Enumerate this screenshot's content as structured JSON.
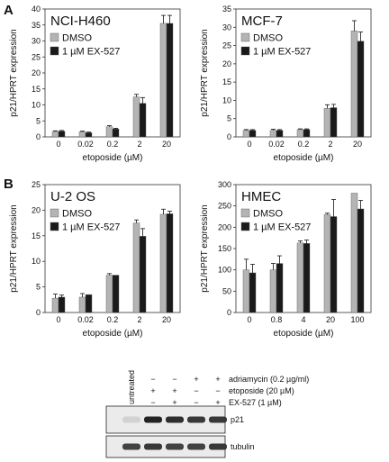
{
  "panel_labels": [
    "A",
    "B"
  ],
  "colors": {
    "dmso": "#b4b4b4",
    "ex527": "#1a1a1a",
    "axis": "#333333"
  },
  "chart_data": [
    {
      "type": "bar",
      "title": "NCI-H460",
      "xlabel": "etoposide (µM)",
      "ylabel": "p21/HPRT expression",
      "categories": [
        "0",
        "0.02",
        "0.2",
        "2",
        "20"
      ],
      "ylim": [
        0,
        40
      ],
      "yticks": [
        0,
        5,
        10,
        15,
        20,
        25,
        30,
        35,
        40
      ],
      "legend_position": "top-left",
      "grid": false,
      "series": [
        {
          "name": "DMSO",
          "color": "#b4b4b4",
          "values": [
            1.7,
            1.6,
            3.2,
            12.5,
            35.5
          ],
          "errors": [
            0.2,
            0.2,
            0.3,
            0.8,
            2.5
          ]
        },
        {
          "name": "1 µM EX-527",
          "color": "#1a1a1a",
          "values": [
            1.8,
            1.3,
            2.5,
            10.5,
            35.5
          ],
          "errors": [
            0.2,
            0.2,
            0.2,
            1.8,
            2.5
          ]
        }
      ]
    },
    {
      "type": "bar",
      "title": "MCF-7",
      "xlabel": "etoposide (µM)",
      "ylabel": "p21/HPRT expression",
      "categories": [
        "0",
        "0.02",
        "0.2",
        "2",
        "20"
      ],
      "ylim": [
        0,
        35
      ],
      "yticks": [
        0,
        5,
        10,
        15,
        20,
        25,
        30,
        35
      ],
      "legend_position": "top-left",
      "grid": false,
      "series": [
        {
          "name": "DMSO",
          "color": "#b4b4b4",
          "values": [
            1.8,
            1.8,
            2.0,
            7.8,
            29.0
          ],
          "errors": [
            0.2,
            0.3,
            0.2,
            1.0,
            2.8
          ]
        },
        {
          "name": "1 µM EX-527",
          "color": "#1a1a1a",
          "values": [
            1.8,
            1.8,
            2.0,
            8.0,
            26.2
          ],
          "errors": [
            0.2,
            0.2,
            0.2,
            0.9,
            2.5
          ]
        }
      ]
    },
    {
      "type": "bar",
      "title": "U-2 OS",
      "xlabel": "etoposide (µM)",
      "ylabel": "p21/HPRT expression",
      "categories": [
        "0",
        "0.02",
        "0.2",
        "2",
        "20"
      ],
      "ylim": [
        0,
        25
      ],
      "yticks": [
        0,
        5,
        10,
        15,
        20,
        25
      ],
      "legend_position": "top-left",
      "grid": false,
      "series": [
        {
          "name": "DMSO",
          "color": "#b4b4b4",
          "values": [
            2.8,
            3.0,
            7.3,
            17.5,
            19.2
          ],
          "errors": [
            0.8,
            0.7,
            0.3,
            0.6,
            1.0
          ]
        },
        {
          "name": "1 µM EX-527",
          "color": "#1a1a1a",
          "values": [
            3.0,
            3.5,
            7.3,
            14.9,
            19.3
          ],
          "errors": [
            0.4,
            0.0,
            0.0,
            1.5,
            0.5
          ]
        }
      ]
    },
    {
      "type": "bar",
      "title": "HMEC",
      "xlabel": "etoposide (µM)",
      "ylabel": "p21/HPRT expression",
      "categories": [
        "0",
        "0.8",
        "4",
        "20",
        "100"
      ],
      "ylim": [
        0,
        300
      ],
      "yticks": [
        0,
        50,
        100,
        150,
        200,
        250,
        300
      ],
      "legend_position": "top-left",
      "grid": false,
      "series": [
        {
          "name": "DMSO",
          "color": "#b4b4b4",
          "values": [
            100,
            100,
            163,
            230,
            280
          ],
          "errors": [
            25,
            15,
            5,
            3,
            0
          ]
        },
        {
          "name": "1 µM EX-527",
          "color": "#1a1a1a",
          "values": [
            93,
            115,
            162,
            225,
            243
          ],
          "errors": [
            20,
            18,
            8,
            40,
            20
          ]
        }
      ]
    }
  ],
  "blot": {
    "lane_header": "untreated",
    "rows": [
      {
        "label": "adriamycin (0.2 µg/ml)",
        "marks": [
          "−",
          "−",
          "+",
          "+"
        ]
      },
      {
        "label": "etoposide (20 µM)",
        "marks": [
          "+",
          "+",
          "−",
          "−"
        ]
      },
      {
        "label": "EX-527 (1 µM)",
        "marks": [
          "−",
          "+",
          "−",
          "+"
        ]
      }
    ],
    "bands": [
      {
        "label": "p21",
        "intensities": [
          0.1,
          0.95,
          0.9,
          0.85,
          0.85
        ]
      },
      {
        "label": "tubulin",
        "intensities": [
          0.8,
          0.85,
          0.8,
          0.8,
          0.85
        ]
      }
    ]
  }
}
